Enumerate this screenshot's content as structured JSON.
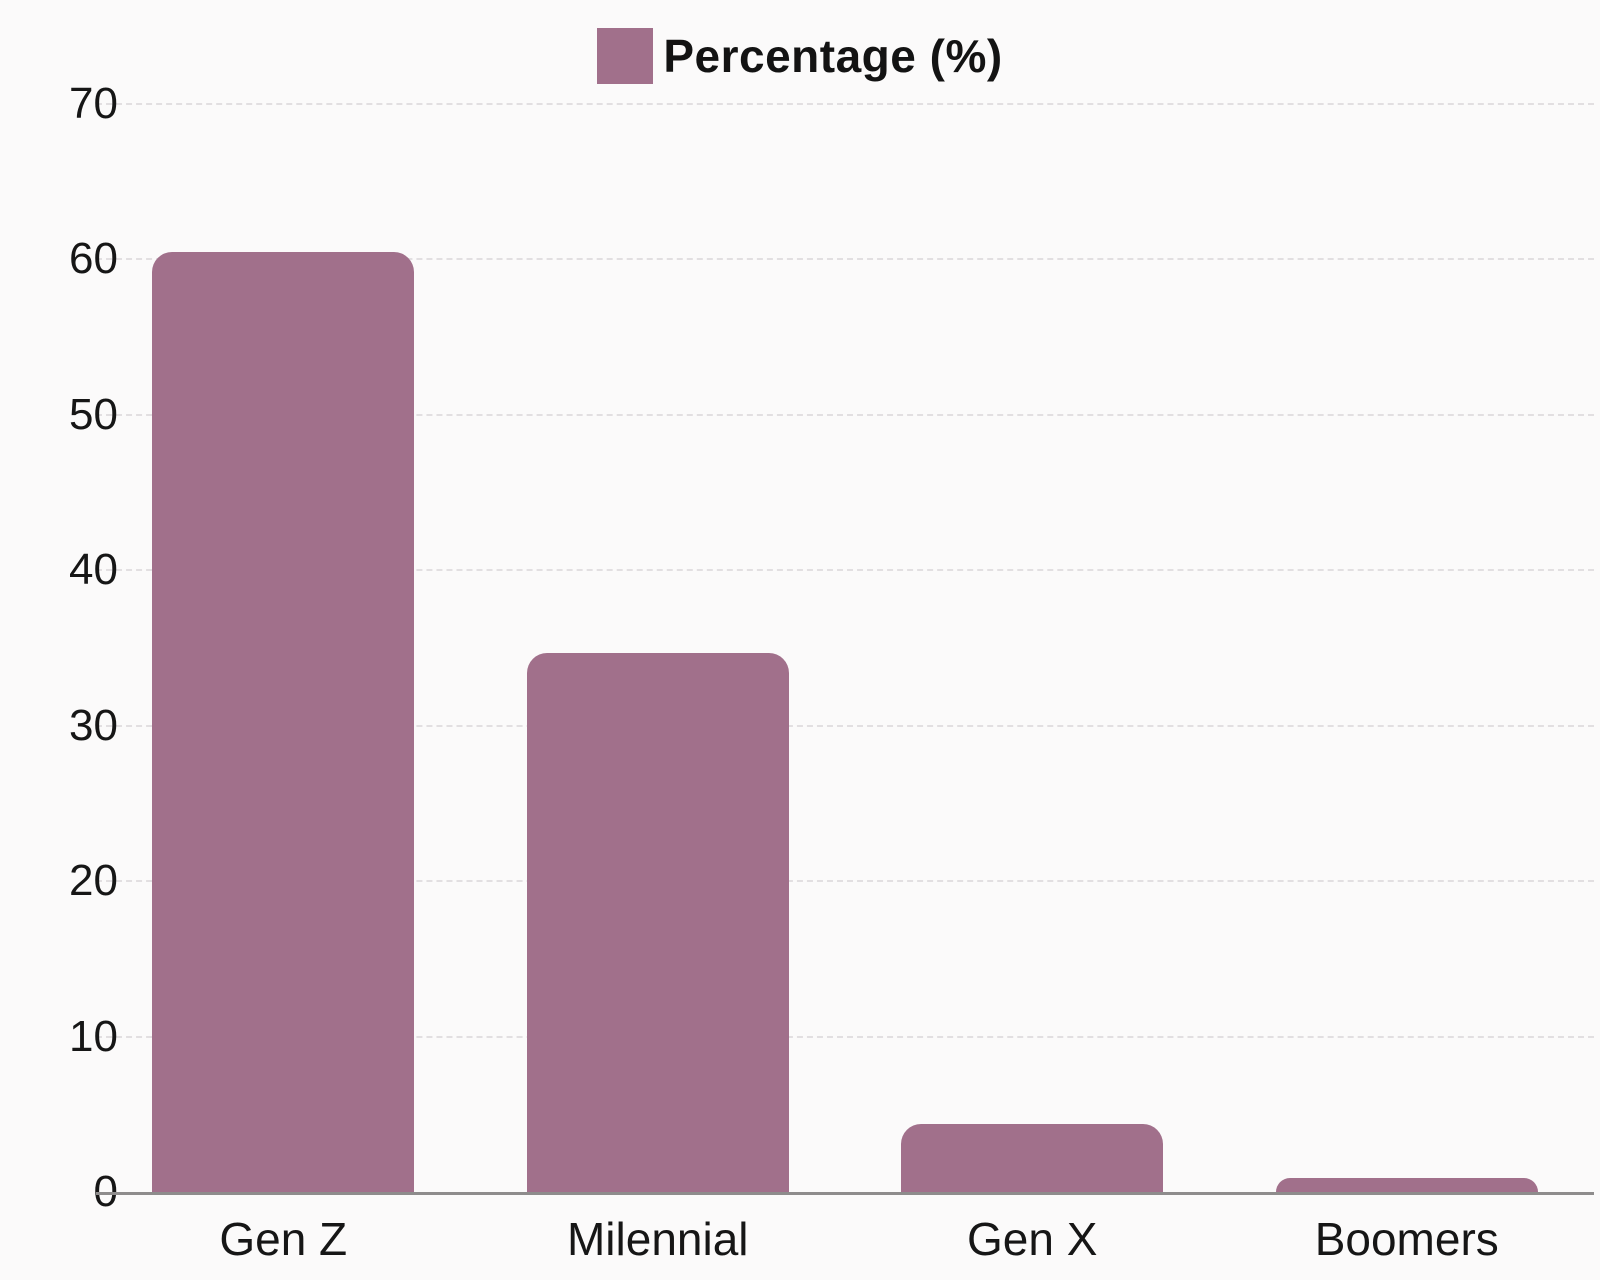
{
  "chart_data": {
    "type": "bar",
    "title": "",
    "xlabel": "",
    "ylabel": "",
    "legend": {
      "label": "Percentage (%)",
      "position": "top"
    },
    "categories": [
      "Gen Z",
      "Milennial",
      "Gen X",
      "Boomers"
    ],
    "series": [
      {
        "name": "Percentage (%)",
        "values": [
          60.5,
          34.7,
          4.4,
          0.9
        ]
      }
    ],
    "ylim": [
      0,
      70
    ],
    "yticks": [
      0,
      10,
      20,
      30,
      40,
      50,
      60,
      70
    ],
    "grid": true,
    "colors": {
      "bar": "#a1708b",
      "grid": "#e2dfe1",
      "axis": "#8e8c8c",
      "text": "#161616",
      "background": "#fbfafa"
    }
  }
}
